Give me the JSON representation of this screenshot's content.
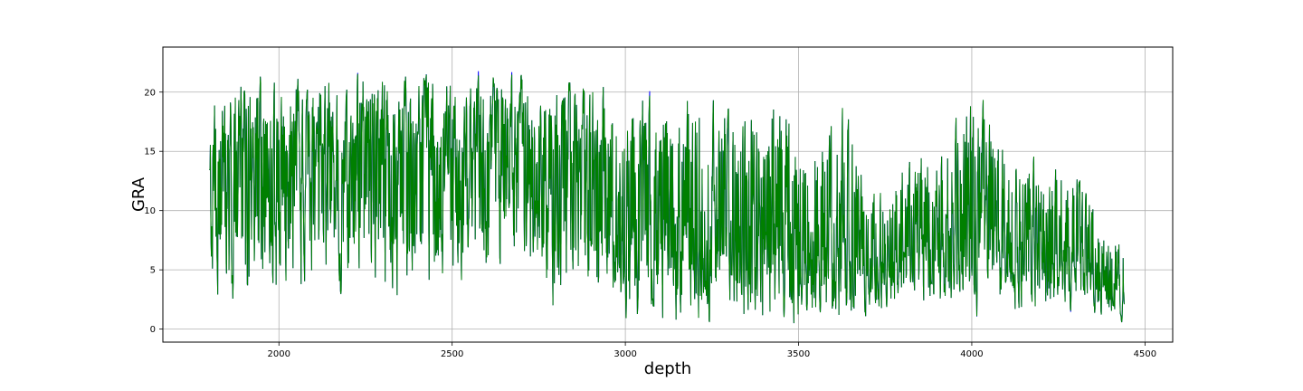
{
  "chart_data": {
    "type": "line",
    "title": "",
    "xlabel": "depth",
    "ylabel": "GRA",
    "xlim": [
      1665,
      4580
    ],
    "ylim": [
      -1.1,
      23.8
    ],
    "x_ticks": [
      2000,
      2500,
      3000,
      3500,
      4000,
      4500
    ],
    "y_ticks": [
      0,
      5,
      10,
      15,
      20
    ],
    "grid": true,
    "legend": "none",
    "depth_range": [
      1800,
      4440
    ],
    "series": [
      {
        "color": "#0000ff",
        "envelope": [
          {
            "x": 1800,
            "min": 4.5,
            "max": 22.4
          },
          {
            "x": 1830,
            "min": 0.5,
            "max": 20.5
          },
          {
            "x": 1900,
            "min": 1.0,
            "max": 22.3
          },
          {
            "x": 2000,
            "min": 1.0,
            "max": 22.4
          },
          {
            "x": 2100,
            "min": 1.0,
            "max": 22.4
          },
          {
            "x": 2200,
            "min": 1.0,
            "max": 22.4
          },
          {
            "x": 2300,
            "min": 0.6,
            "max": 22.4
          },
          {
            "x": 2400,
            "min": 1.0,
            "max": 22.4
          },
          {
            "x": 2500,
            "min": 2.5,
            "max": 22.3
          },
          {
            "x": 2600,
            "min": 3.5,
            "max": 22.3
          },
          {
            "x": 2700,
            "min": 3.0,
            "max": 22.3
          },
          {
            "x": 2780,
            "min": 0.4,
            "max": 22.4
          },
          {
            "x": 2850,
            "min": 0.4,
            "max": 22.4
          },
          {
            "x": 2950,
            "min": 0.5,
            "max": 22.3
          },
          {
            "x": 3050,
            "min": 0.3,
            "max": 20.5
          },
          {
            "x": 3150,
            "min": 0.3,
            "max": 21.2
          },
          {
            "x": 3250,
            "min": 0.5,
            "max": 20.3
          },
          {
            "x": 3350,
            "min": 0.5,
            "max": 20.2
          },
          {
            "x": 3450,
            "min": 0.3,
            "max": 21.7
          },
          {
            "x": 3550,
            "min": 0.3,
            "max": 18.0
          },
          {
            "x": 3640,
            "min": 0.2,
            "max": 20.2
          },
          {
            "x": 3700,
            "min": 1.0,
            "max": 12.0
          },
          {
            "x": 3800,
            "min": 1.2,
            "max": 15.0
          },
          {
            "x": 3900,
            "min": 1.5,
            "max": 16.5
          },
          {
            "x": 4000,
            "min": 0.9,
            "max": 22.2
          },
          {
            "x": 4100,
            "min": 1.0,
            "max": 16.0
          },
          {
            "x": 4200,
            "min": 1.2,
            "max": 15.2
          },
          {
            "x": 4300,
            "min": 1.5,
            "max": 13.5
          },
          {
            "x": 4380,
            "min": 1.0,
            "max": 10.0
          },
          {
            "x": 4440,
            "min": 0.4,
            "max": 8.5
          }
        ]
      },
      {
        "color": "#008000",
        "envelope": [
          {
            "x": 1800,
            "min": 4.8,
            "max": 22.0
          },
          {
            "x": 1830,
            "min": 0.6,
            "max": 20.0
          },
          {
            "x": 1900,
            "min": 1.1,
            "max": 21.5
          },
          {
            "x": 2000,
            "min": 1.1,
            "max": 21.8
          },
          {
            "x": 2100,
            "min": 1.1,
            "max": 21.6
          },
          {
            "x": 2200,
            "min": 1.1,
            "max": 21.5
          },
          {
            "x": 2300,
            "min": 0.7,
            "max": 21.6
          },
          {
            "x": 2400,
            "min": 1.1,
            "max": 21.5
          },
          {
            "x": 2500,
            "min": 2.6,
            "max": 21.4
          },
          {
            "x": 2600,
            "min": 3.6,
            "max": 21.4
          },
          {
            "x": 2700,
            "min": 3.1,
            "max": 21.5
          },
          {
            "x": 2780,
            "min": 0.6,
            "max": 21.2
          },
          {
            "x": 2850,
            "min": 0.6,
            "max": 21.0
          },
          {
            "x": 2950,
            "min": 0.6,
            "max": 20.8
          },
          {
            "x": 3050,
            "min": 0.5,
            "max": 19.5
          },
          {
            "x": 3150,
            "min": 0.5,
            "max": 20.5
          },
          {
            "x": 3250,
            "min": 0.6,
            "max": 19.5
          },
          {
            "x": 3350,
            "min": 0.6,
            "max": 19.8
          },
          {
            "x": 3450,
            "min": 0.5,
            "max": 21.2
          },
          {
            "x": 3550,
            "min": 0.5,
            "max": 17.5
          },
          {
            "x": 3640,
            "min": 0.3,
            "max": 20.0
          },
          {
            "x": 3700,
            "min": 1.1,
            "max": 11.5
          },
          {
            "x": 3800,
            "min": 1.3,
            "max": 14.8
          },
          {
            "x": 3900,
            "min": 1.6,
            "max": 16.2
          },
          {
            "x": 4000,
            "min": 1.1,
            "max": 22.0
          },
          {
            "x": 4100,
            "min": 1.1,
            "max": 15.8
          },
          {
            "x": 4200,
            "min": 1.3,
            "max": 15.0
          },
          {
            "x": 4300,
            "min": 1.6,
            "max": 13.3
          },
          {
            "x": 4380,
            "min": 1.1,
            "max": 9.8
          },
          {
            "x": 4440,
            "min": 0.5,
            "max": 8.2
          }
        ]
      }
    ]
  }
}
